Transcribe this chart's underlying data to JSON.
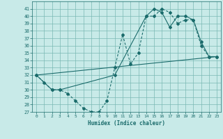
{
  "xlabel": "Humidex (Indice chaleur)",
  "bg_color": "#c8eae8",
  "grid_color": "#7ab8b4",
  "line_color": "#1a6b6b",
  "xlim": [
    -0.5,
    23.5
  ],
  "ylim": [
    27,
    42
  ],
  "yticks": [
    27,
    28,
    29,
    30,
    31,
    32,
    33,
    34,
    35,
    36,
    37,
    38,
    39,
    40,
    41
  ],
  "xticks": [
    0,
    1,
    2,
    3,
    4,
    5,
    6,
    7,
    8,
    9,
    10,
    11,
    12,
    13,
    14,
    15,
    16,
    17,
    18,
    19,
    20,
    21,
    22,
    23
  ],
  "line1_x": [
    0,
    1,
    2,
    3,
    4,
    5,
    6,
    7,
    8,
    9,
    10,
    11,
    12,
    13,
    14,
    15,
    16,
    17,
    18,
    19,
    20,
    21,
    22,
    23
  ],
  "line1_y": [
    32,
    31,
    30,
    30,
    29.5,
    28.5,
    27.5,
    27,
    27,
    28.5,
    33,
    37.5,
    33.5,
    35,
    40,
    40,
    41,
    40.5,
    39,
    39.5,
    39.5,
    36,
    34.5,
    34.5
  ],
  "line2_x": [
    0,
    2,
    3,
    10,
    14,
    15,
    16,
    17,
    18,
    19,
    20,
    21,
    22,
    23
  ],
  "line2_y": [
    32,
    30,
    30,
    32,
    40,
    41,
    40.5,
    38.5,
    40,
    40,
    39.5,
    36.5,
    34.5,
    34.5
  ],
  "line3_x": [
    0,
    23
  ],
  "line3_y": [
    32,
    34.5
  ]
}
